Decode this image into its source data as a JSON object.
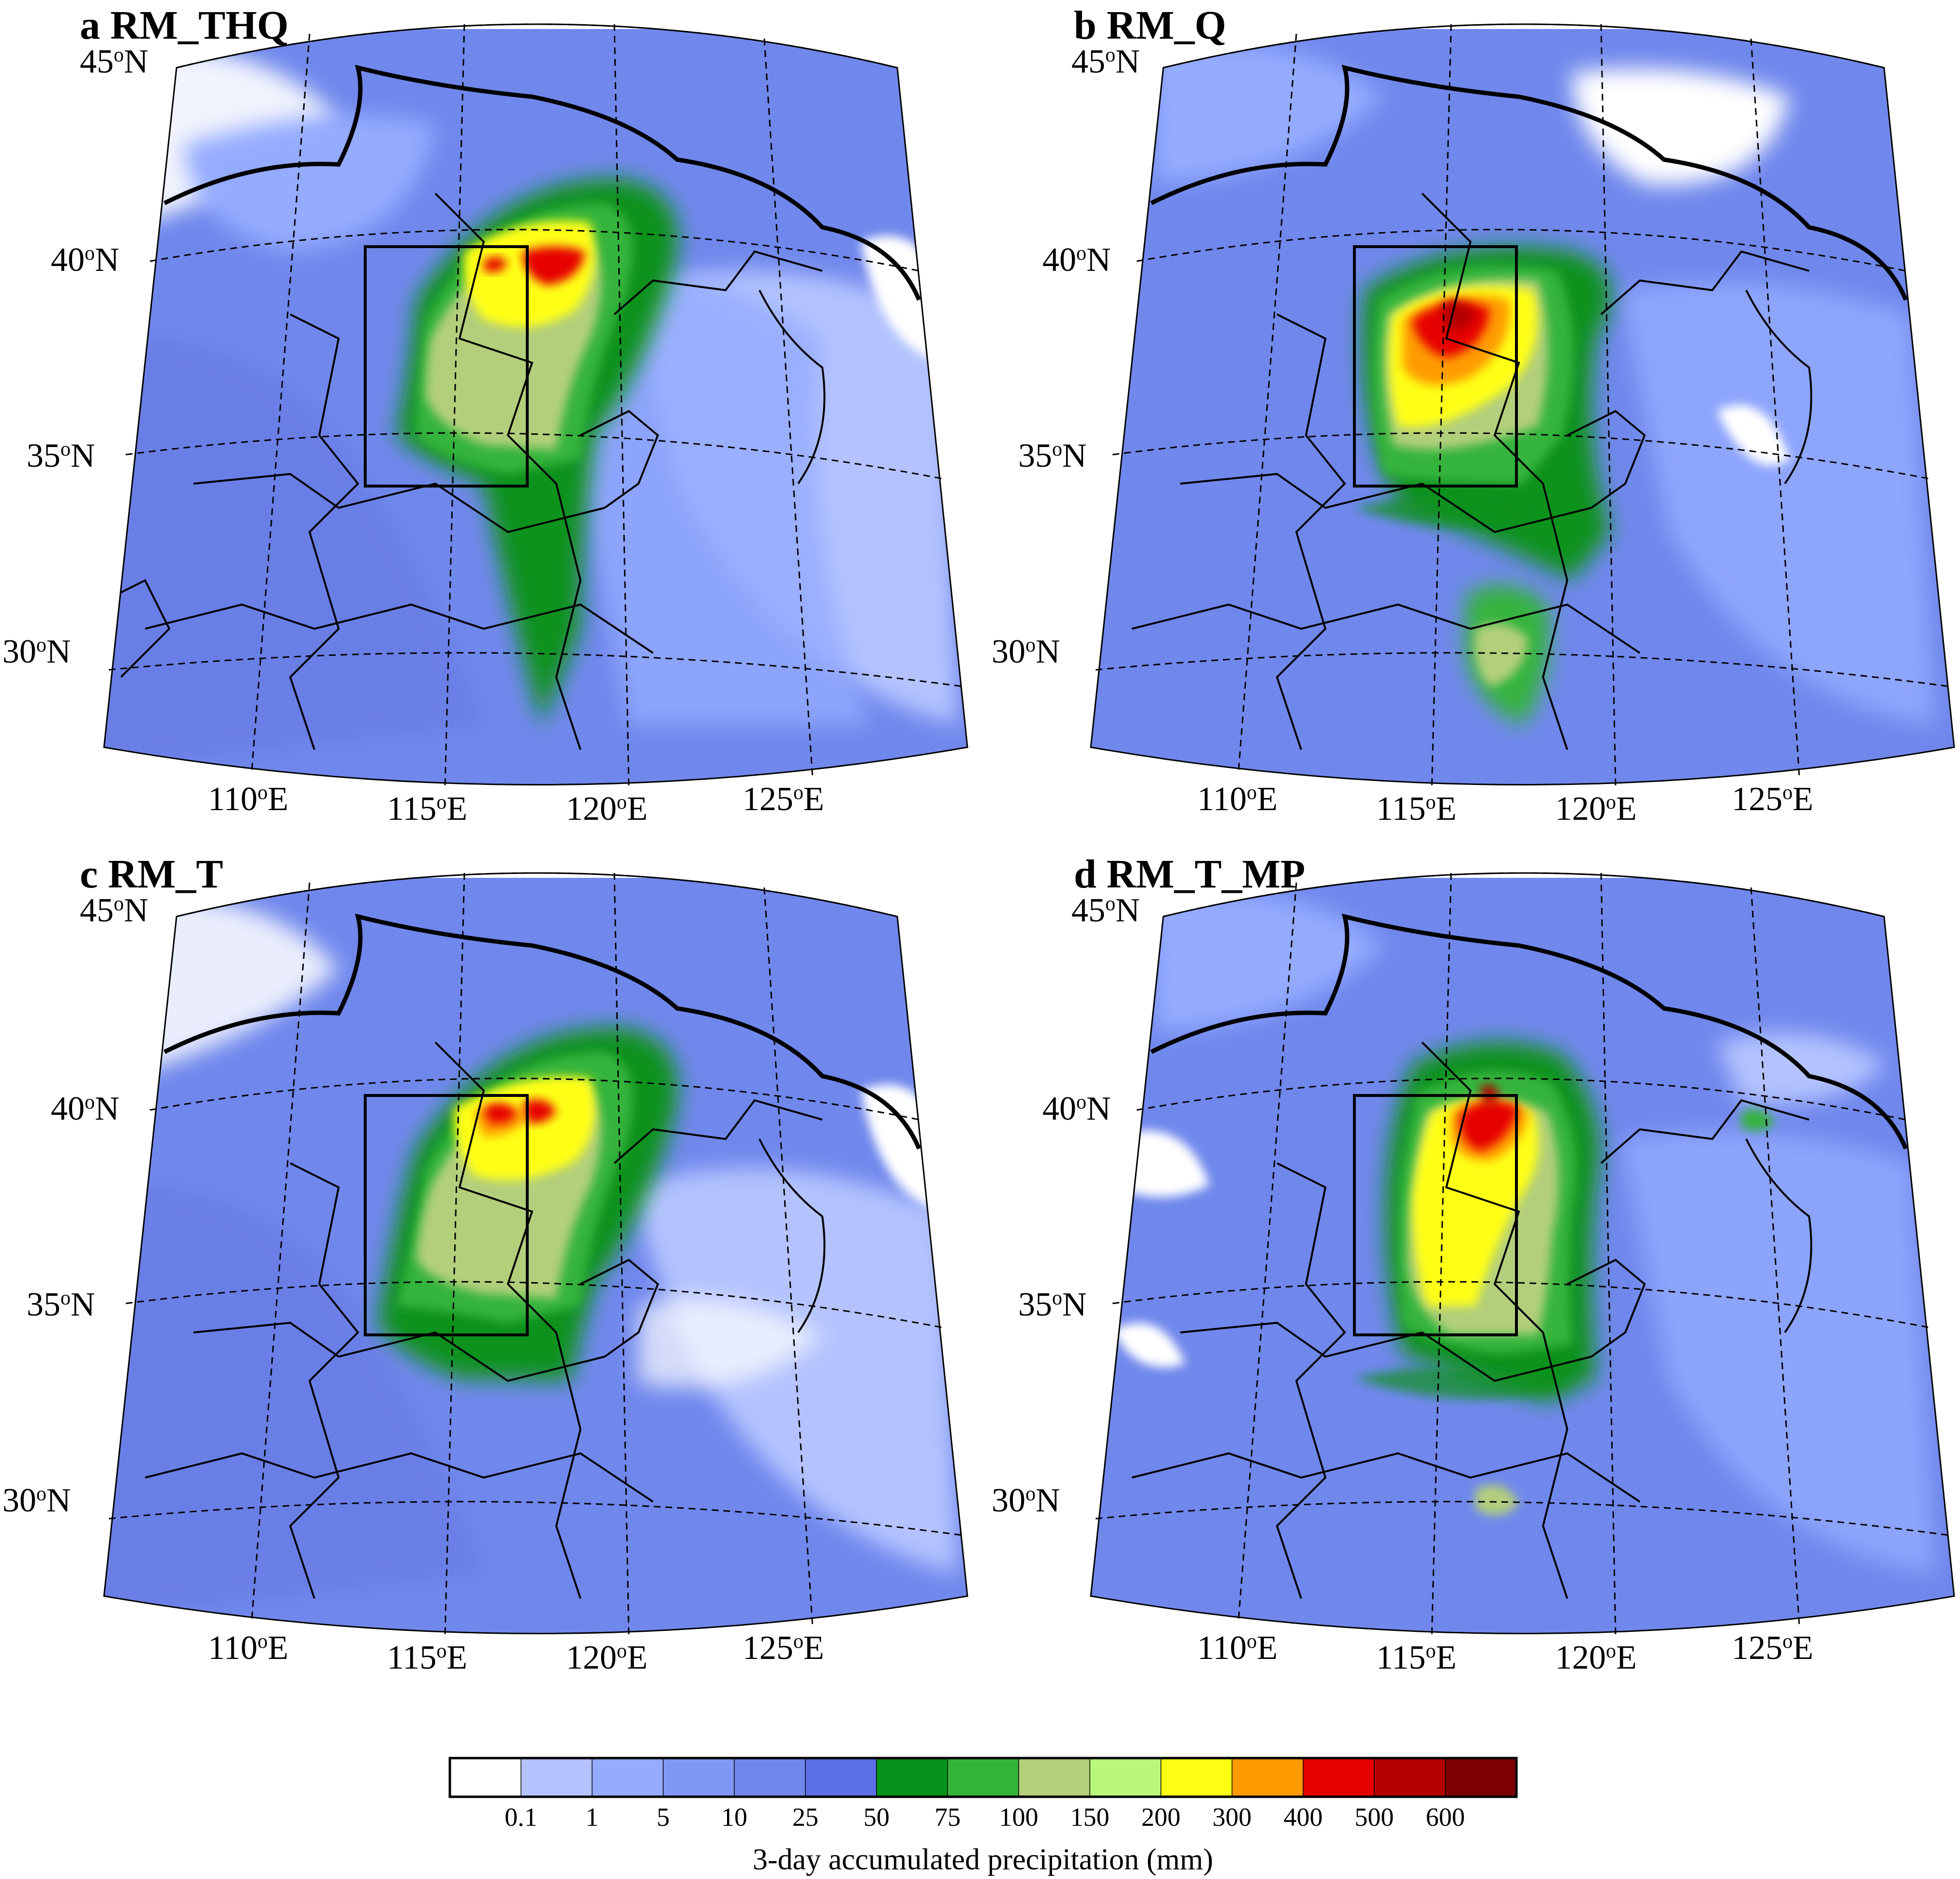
{
  "figure": {
    "panels": [
      {
        "letter": "a",
        "title": "RM_THQ"
      },
      {
        "letter": "b",
        "title": "RM_Q"
      },
      {
        "letter": "c",
        "title": "RM_T"
      },
      {
        "letter": "d",
        "title": "RM_T_MP"
      }
    ],
    "lat_labels": [
      {
        "deg": "45",
        "hemi": "N"
      },
      {
        "deg": "40",
        "hemi": "N"
      },
      {
        "deg": "35",
        "hemi": "N"
      },
      {
        "deg": "30",
        "hemi": "N"
      }
    ],
    "lon_labels": [
      {
        "deg": "110",
        "hemi": "E"
      },
      {
        "deg": "115",
        "hemi": "E"
      },
      {
        "deg": "120",
        "hemi": "E"
      },
      {
        "deg": "125",
        "hemi": "E"
      }
    ],
    "colorbar": {
      "title": "3-day accumulated precipitation (mm)",
      "tick_labels": [
        "0.1",
        "1",
        "5",
        "10",
        "25",
        "50",
        "75",
        "100",
        "150",
        "200",
        "300",
        "400",
        "500",
        "600"
      ],
      "colors": [
        "#ffffff",
        "#b4c3ff",
        "#94abff",
        "#7f97f5",
        "#7088ec",
        "#5c6fe6",
        "#07921c",
        "#35b43c",
        "#b3cf7b",
        "#b9f77a",
        "#ffff14",
        "#ff9b00",
        "#e60000",
        "#b40000",
        "#7d0000"
      ]
    }
  },
  "map_legend": {
    "analysis_box": "black rectangle outlining the analysis region",
    "boundaries": "provincial and national borders (black lines)",
    "graticule": "dashed latitude/longitude lines"
  }
}
